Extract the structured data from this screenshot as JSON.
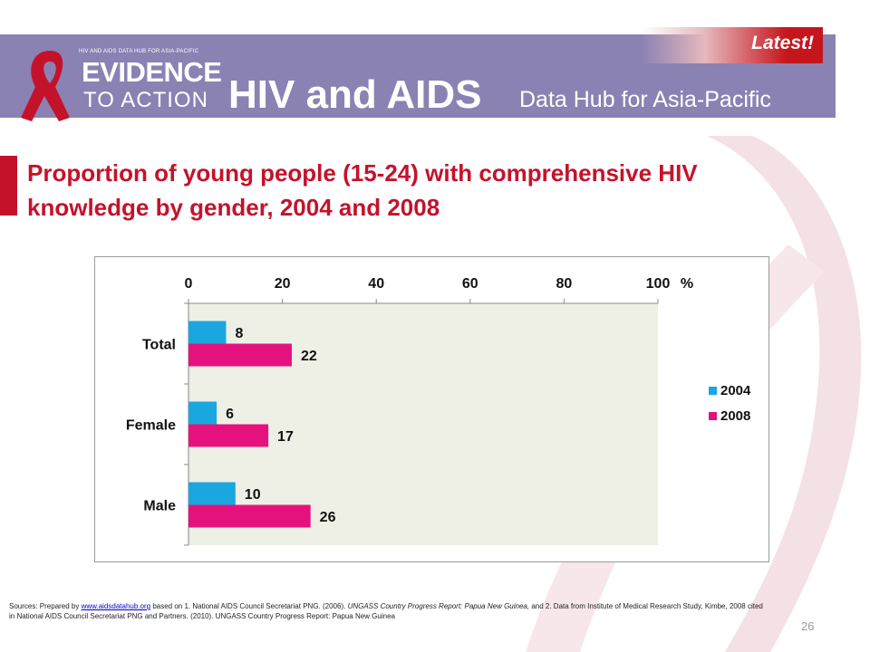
{
  "header": {
    "logo_small": "HIV AND AIDS DATA HUB FOR ASIA-PACIFIC",
    "logo_evidence": "EVIDENCE",
    "logo_to_action": "TO ACTION",
    "title": "HIV and AIDS",
    "subtitle": "Data Hub for Asia-Pacific",
    "badge": "Latest!"
  },
  "slide": {
    "title": "Proportion of young people (15-24) with comprehensive HIV knowledge by gender, 2004 and 2008",
    "page_number": "26"
  },
  "sources": {
    "prefix": "Sources: Prepared by ",
    "link": "www.aidsdatahub.org",
    "text1": " based on 1. National AIDS Council Secretariat PNG. (2006). ",
    "italic1": "UNGASS Country Progress Report: Papua New Guinea,",
    "text2": " and 2. Data from Institute of Medical Research Study, Kimbe, 2008 cited in National AIDS Council Secretariat PNG and Partners. (2010). UNGASS Country Progress Report: Papua New Guinea"
  },
  "colors": {
    "header_bg": "#8a82b3",
    "accent_red": "#c5122b",
    "series_2004": "#1aa7e0",
    "series_2008": "#e5127d",
    "plot_bg": "#eef0e6"
  },
  "chart_data": {
    "type": "bar",
    "orientation": "horizontal",
    "categories": [
      "Total",
      "Female",
      "Male"
    ],
    "series": [
      {
        "name": "2004",
        "values": [
          8,
          6,
          10
        ],
        "color": "#1aa7e0"
      },
      {
        "name": "2008",
        "values": [
          22,
          17,
          26
        ],
        "color": "#e5127d"
      }
    ],
    "x_axis": {
      "position": "top",
      "ticks": [
        "0",
        "20",
        "40",
        "60",
        "80",
        "100"
      ],
      "unit": "%"
    },
    "xlim": [
      0,
      100
    ],
    "legend": "right",
    "data_labels": true
  }
}
